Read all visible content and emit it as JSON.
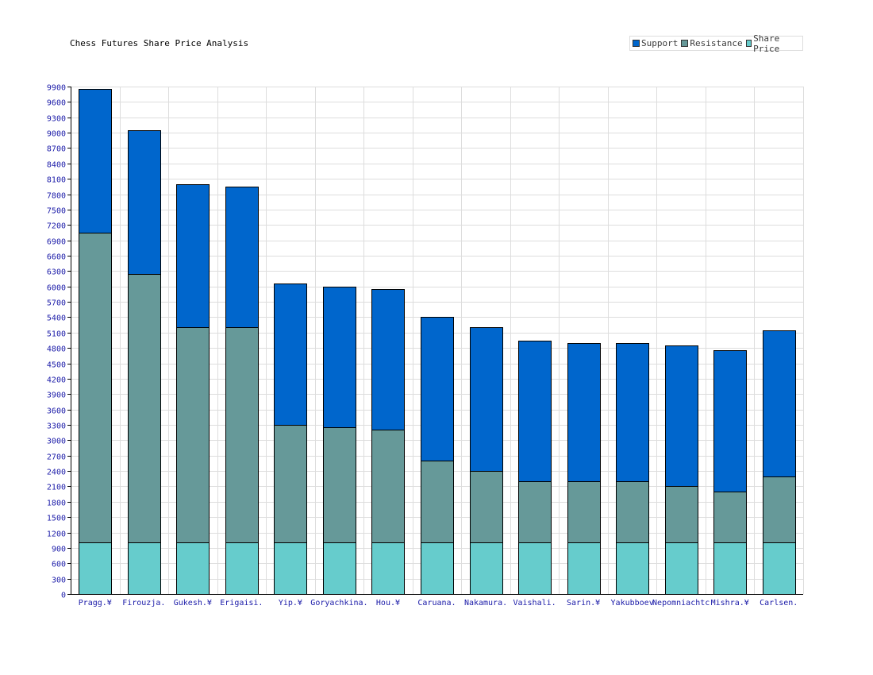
{
  "chart_data": {
    "type": "bar",
    "stacked": true,
    "title": "Chess Futures Share Price Analysis",
    "xlabel": "",
    "ylabel": "",
    "ylim": [
      0,
      9900
    ],
    "ytick_step": 300,
    "grid": true,
    "legend_position": "top-right",
    "categories": [
      "Pragg.¥",
      "Firouzja.",
      "Gukesh.¥",
      "Erigaisi.",
      "Yip.¥",
      "Goryachkina.",
      "Hou.¥",
      "Caruana.",
      "Nakamura.",
      "Vaishali.",
      "Sarin.¥",
      "Yakubboev",
      "Nepomniachtc",
      "Mishra.¥",
      "Carlsen."
    ],
    "series": [
      {
        "name": "Share Price",
        "color": "#66cccc",
        "values": [
          1000,
          1000,
          1000,
          1000,
          1000,
          1000,
          1000,
          1000,
          1000,
          1000,
          1000,
          1000,
          1000,
          1000,
          1000
        ]
      },
      {
        "name": "Resistance",
        "color": "#669999",
        "values": [
          6050,
          5250,
          4200,
          4200,
          2300,
          2250,
          2200,
          1600,
          1400,
          1200,
          1200,
          1200,
          1100,
          1000,
          1300
        ]
      },
      {
        "name": "Support",
        "color": "#0066cc",
        "values": [
          2800,
          2800,
          2800,
          2750,
          2750,
          2750,
          2750,
          2800,
          2800,
          2750,
          2700,
          2700,
          2750,
          2750,
          2850
        ]
      }
    ],
    "legend_order": [
      "Support",
      "Resistance",
      "Share Price"
    ]
  }
}
